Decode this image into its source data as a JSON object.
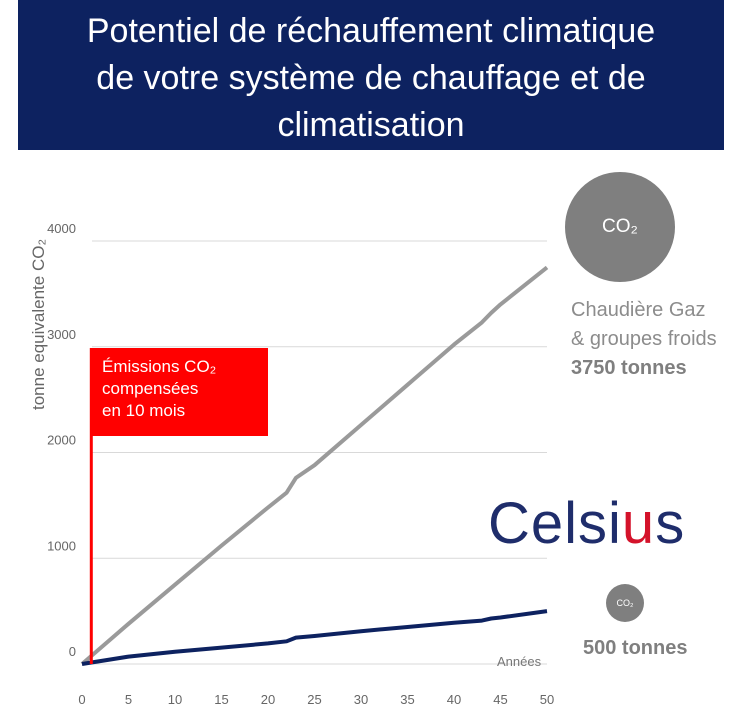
{
  "title_lines": [
    "Potentiel de réchauffement climatique",
    "de votre système de chauffage et de",
    "climatisation"
  ],
  "co2_badge_large": "CO₂",
  "co2_badge_small": "CO₂",
  "gas_label_line1": "Chaudière Gaz",
  "gas_label_line2": "& groupes froids",
  "gas_total": "3750 tonnes",
  "celsius_total": "500 tonnes",
  "logo": {
    "before": "Celsi",
    "accent": "u",
    "after": "s"
  },
  "redbox_lines": [
    "Émissions CO₂",
    "compensées",
    "en 10 mois"
  ],
  "colors": {
    "banner": "#0d2260",
    "gas": "#9a9a9a",
    "celsius": "#0d2260",
    "marker": "#ff0000",
    "logo_accent": "#d4122a"
  },
  "chart_data": {
    "type": "line",
    "ylabel": "tonne equivalente CO₂",
    "xlabel": "Années",
    "xlim": [
      0,
      50
    ],
    "ylim": [
      0,
      4000
    ],
    "xticks": [
      0,
      5,
      10,
      15,
      20,
      25,
      30,
      35,
      40,
      45,
      50
    ],
    "yticks": [
      0,
      1000,
      2000,
      3000,
      4000
    ],
    "grid": true,
    "marker_x": 1,
    "series": [
      {
        "name": "Chaudière Gaz & groupes froids",
        "color": "#9a9a9a",
        "x": [
          0,
          5,
          10,
          15,
          20,
          22,
          23,
          25,
          30,
          35,
          40,
          43,
          44,
          45,
          50
        ],
        "y": [
          0,
          380,
          750,
          1120,
          1480,
          1620,
          1760,
          1880,
          2260,
          2640,
          3020,
          3230,
          3320,
          3400,
          3750
        ]
      },
      {
        "name": "Celsius",
        "color": "#0d2260",
        "x": [
          0,
          5,
          10,
          15,
          20,
          22,
          23,
          25,
          30,
          35,
          40,
          43,
          44,
          45,
          50
        ],
        "y": [
          0,
          70,
          115,
          155,
          195,
          215,
          250,
          265,
          310,
          350,
          390,
          410,
          430,
          440,
          500
        ]
      }
    ]
  }
}
